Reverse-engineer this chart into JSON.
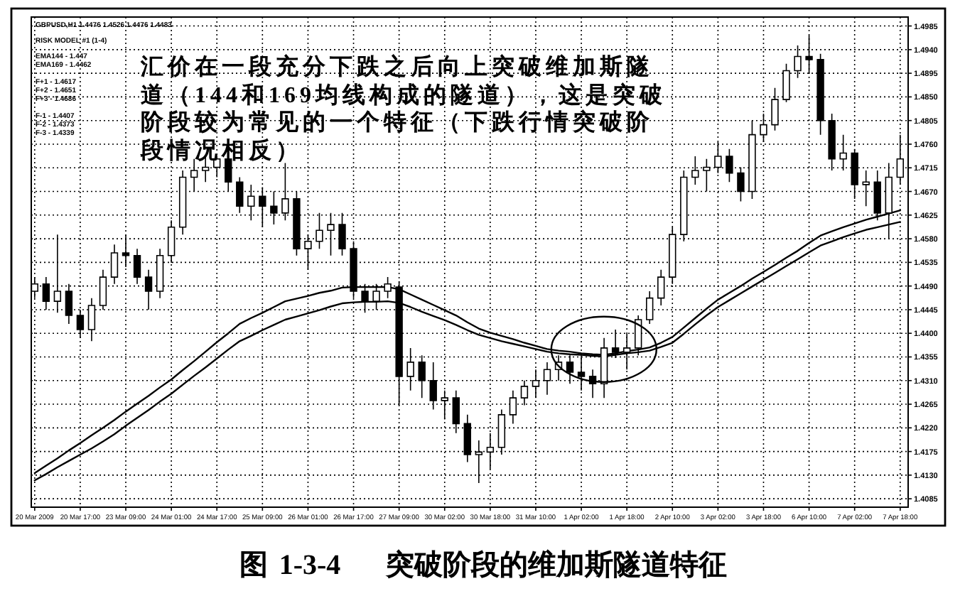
{
  "chart_data": {
    "type": "candlestick",
    "title": "图 1-3-4    突破阶段的维加斯隧道特征",
    "annotations": [
      "汇价在一段充分下跌之后向上突破维加斯隧道（144和169均线构成的隧道），这是突破阶段较为常见的一个特征（下跌行情突破阶段情况相反）",
      "GBPUSD,H1 1.4476 1.4526 1.4476 1.4483",
      "RISK MODEL #1 (1-4)",
      "EMA144 - 1.447",
      "EMA169 - 1.4462",
      "F+1 - 1.4617",
      "F+2 - 1.4651",
      "F+3 - 1.4686",
      "F-1 - 1.4407",
      "F-2 - 1.4373",
      "F-3 - 1.4339"
    ],
    "categories": [
      "20 Mar 2009",
      null,
      null,
      null,
      "20 Mar 17:00",
      null,
      null,
      null,
      "23 Mar 09:00",
      null,
      null,
      null,
      "24 Mar 01:00",
      null,
      null,
      null,
      "24 Mar 17:00",
      null,
      null,
      null,
      "25 Mar 09:00",
      null,
      null,
      null,
      "26 Mar 01:00",
      null,
      null,
      null,
      "26 Mar 17:00",
      null,
      null,
      null,
      "27 Mar 09:00",
      null,
      null,
      null,
      "30 Mar 02:00",
      null,
      null,
      null,
      "30 Mar 18:00",
      null,
      null,
      null,
      "31 Mar 10:00",
      null,
      null,
      null,
      "1 Apr 02:00",
      null,
      null,
      null,
      "1 Apr 18:00",
      null,
      null,
      null,
      "2 Apr 10:00",
      null,
      null,
      null,
      "3 Apr 02:00",
      null,
      null,
      null,
      "3 Apr 18:00",
      null,
      null,
      null,
      "6 Apr 10:00",
      null,
      null,
      null,
      "7 Apr 02:00",
      null,
      null,
      null,
      "7 Apr 18:00"
    ],
    "ohlc": [
      [
        1.448,
        1.4507,
        1.4467,
        1.4494
      ],
      [
        1.4494,
        1.4507,
        1.4445,
        1.4461
      ],
      [
        1.4461,
        1.4588,
        1.4439,
        1.448
      ],
      [
        1.448,
        1.4494,
        1.4418,
        1.4434
      ],
      [
        1.4434,
        1.4445,
        1.4391,
        1.4407
      ],
      [
        1.4407,
        1.4467,
        1.4385,
        1.4453
      ],
      [
        1.4453,
        1.4521,
        1.4445,
        1.4507
      ],
      [
        1.4507,
        1.4569,
        1.4494,
        1.4553
      ],
      [
        1.4553,
        1.4588,
        1.4526,
        1.4548
      ],
      [
        1.4548,
        1.4561,
        1.4494,
        1.4507
      ],
      [
        1.4507,
        1.4521,
        1.4445,
        1.448
      ],
      [
        1.448,
        1.4561,
        1.4467,
        1.4548
      ],
      [
        1.4548,
        1.4615,
        1.4534,
        1.4602
      ],
      [
        1.4602,
        1.471,
        1.4588,
        1.4697
      ],
      [
        1.4697,
        1.4732,
        1.467,
        1.471
      ],
      [
        1.471,
        1.4737,
        1.4688,
        1.4716
      ],
      [
        1.4716,
        1.4737,
        1.4697,
        1.4732
      ],
      [
        1.4732,
        1.4734,
        1.467,
        1.4688
      ],
      [
        1.4688,
        1.4697,
        1.4629,
        1.4642
      ],
      [
        1.4642,
        1.4683,
        1.4615,
        1.4661
      ],
      [
        1.4661,
        1.4678,
        1.4602,
        1.4642
      ],
      [
        1.4642,
        1.467,
        1.4607,
        1.4629
      ],
      [
        1.4629,
        1.4724,
        1.4615,
        1.4656
      ],
      [
        1.4656,
        1.467,
        1.4548,
        1.4561
      ],
      [
        1.4561,
        1.4588,
        1.4521,
        1.4575
      ],
      [
        1.4575,
        1.4629,
        1.4561,
        1.4596
      ],
      [
        1.4596,
        1.4629,
        1.4548,
        1.4607
      ],
      [
        1.4607,
        1.4629,
        1.4548,
        1.4561
      ],
      [
        1.4561,
        1.4575,
        1.4467,
        1.448
      ],
      [
        1.448,
        1.4494,
        1.4439,
        1.4461
      ],
      [
        1.4461,
        1.4494,
        1.4445,
        1.448
      ],
      [
        1.448,
        1.4507,
        1.4467,
        1.4494
      ],
      [
        1.4488,
        1.4499,
        1.4263,
        1.4318
      ],
      [
        1.4318,
        1.4372,
        1.4291,
        1.4345
      ],
      [
        1.4345,
        1.4358,
        1.4277,
        1.431
      ],
      [
        1.431,
        1.4345,
        1.4255,
        1.4272
      ],
      [
        1.4272,
        1.4291,
        1.4236,
        1.4277
      ],
      [
        1.4277,
        1.4291,
        1.421,
        1.4228
      ],
      [
        1.4228,
        1.4245,
        1.4155,
        1.4169
      ],
      [
        1.4169,
        1.4196,
        1.4115,
        1.4174
      ],
      [
        1.4174,
        1.421,
        1.4142,
        1.4183
      ],
      [
        1.4183,
        1.4255,
        1.4169,
        1.4245
      ],
      [
        1.4245,
        1.4291,
        1.4228,
        1.4277
      ],
      [
        1.4277,
        1.431,
        1.4263,
        1.4299
      ],
      [
        1.4299,
        1.4331,
        1.4277,
        1.431
      ],
      [
        1.431,
        1.4345,
        1.4283,
        1.4331
      ],
      [
        1.4331,
        1.4358,
        1.431,
        1.4345
      ],
      [
        1.4345,
        1.4358,
        1.4304,
        1.4326
      ],
      [
        1.4326,
        1.4358,
        1.4291,
        1.4318
      ],
      [
        1.4318,
        1.4331,
        1.4277,
        1.4304
      ],
      [
        1.4304,
        1.4391,
        1.4277,
        1.4372
      ],
      [
        1.4372,
        1.4407,
        1.4353,
        1.4364
      ],
      [
        1.4364,
        1.4399,
        1.4331,
        1.4372
      ],
      [
        1.4372,
        1.4434,
        1.4358,
        1.4426
      ],
      [
        1.4426,
        1.448,
        1.4418,
        1.4467
      ],
      [
        1.4467,
        1.4521,
        1.4453,
        1.4507
      ],
      [
        1.4507,
        1.4602,
        1.4494,
        1.4588
      ],
      [
        1.4588,
        1.471,
        1.4575,
        1.4697
      ],
      [
        1.4697,
        1.4737,
        1.4683,
        1.471
      ],
      [
        1.471,
        1.4732,
        1.467,
        1.4716
      ],
      [
        1.4716,
        1.4764,
        1.4705,
        1.4737
      ],
      [
        1.4737,
        1.4751,
        1.4688,
        1.4705
      ],
      [
        1.4705,
        1.4716,
        1.4651,
        1.467
      ],
      [
        1.467,
        1.4805,
        1.4656,
        1.4778
      ],
      [
        1.4778,
        1.4818,
        1.4764,
        1.4797
      ],
      [
        1.4797,
        1.4867,
        1.4786,
        1.4845
      ],
      [
        1.4845,
        1.4913,
        1.484,
        1.49
      ],
      [
        1.49,
        1.4948,
        1.4886,
        1.4927
      ],
      [
        1.4927,
        1.4967,
        1.4894,
        1.4921
      ],
      [
        1.4921,
        1.4932,
        1.4778,
        1.4805
      ],
      [
        1.4805,
        1.4818,
        1.471,
        1.4732
      ],
      [
        1.4732,
        1.4778,
        1.471,
        1.4743
      ],
      [
        1.4743,
        1.4751,
        1.4656,
        1.4683
      ],
      [
        1.4683,
        1.471,
        1.4642,
        1.4688
      ],
      [
        1.4688,
        1.471,
        1.4615,
        1.4629
      ],
      [
        1.4629,
        1.4724,
        1.458,
        1.4697
      ],
      [
        1.4697,
        1.4778,
        1.4683,
        1.4732
      ]
    ],
    "series": [
      {
        "type": "line",
        "color": "#000000",
        "values": [
          1.4134,
          1.4148,
          1.4162,
          1.4177,
          1.4191,
          1.4206,
          1.422,
          1.4235,
          1.4251,
          1.4266,
          1.4281,
          1.4297,
          1.4312,
          1.433,
          1.4347,
          1.4365,
          1.4383,
          1.44,
          1.4418,
          1.4429,
          1.4439,
          1.445,
          1.4461,
          1.4466,
          1.4471,
          1.4477,
          1.4481,
          1.4487,
          1.4488,
          1.4488,
          1.4488,
          1.4488,
          1.4484,
          1.4474,
          1.4464,
          1.4454,
          1.4444,
          1.4434,
          1.4421,
          1.4409,
          1.4401,
          1.4395,
          1.4389,
          1.4382,
          1.4376,
          1.437,
          1.4367,
          1.4365,
          1.4362,
          1.436,
          1.4359,
          1.4362,
          1.4366,
          1.4369,
          1.4373,
          1.4382,
          1.4393,
          1.4411,
          1.4429,
          1.4447,
          1.4464,
          1.4477,
          1.449,
          1.4504,
          1.4517,
          1.453,
          1.4544,
          1.4557,
          1.4572,
          1.4586,
          1.4594,
          1.4602,
          1.4609,
          1.4616,
          1.4622,
          1.4628,
          1.4634
        ]
      },
      {
        "type": "line",
        "color": "#000000",
        "values": [
          1.412,
          1.4132,
          1.4145,
          1.4157,
          1.4169,
          1.4181,
          1.4194,
          1.4208,
          1.4224,
          1.4239,
          1.4254,
          1.427,
          1.4285,
          1.4302,
          1.4319,
          1.4335,
          1.4352,
          1.4369,
          1.4385,
          1.4395,
          1.4406,
          1.4416,
          1.4426,
          1.4432,
          1.4438,
          1.4444,
          1.4451,
          1.4457,
          1.4459,
          1.446,
          1.446,
          1.4461,
          1.4458,
          1.445,
          1.4441,
          1.4433,
          1.4425,
          1.4416,
          1.4406,
          1.4397,
          1.4391,
          1.4385,
          1.438,
          1.4375,
          1.437,
          1.4365,
          1.4362,
          1.436,
          1.4359,
          1.4357,
          1.4356,
          1.4359,
          1.4362,
          1.4364,
          1.4367,
          1.4374,
          1.4382,
          1.4399,
          1.4417,
          1.4434,
          1.445,
          1.4463,
          1.4476,
          1.4489,
          1.4502,
          1.4515,
          1.4528,
          1.4541,
          1.4554,
          1.4567,
          1.4575,
          1.4583,
          1.459,
          1.4597,
          1.4602,
          1.4607,
          1.4612
        ]
      }
    ],
    "ylim": [
      1.4069,
      1.5002
    ],
    "yticks": [
      1.4085,
      {
        "value": 1.413,
        "label": "1.4130"
      },
      1.4175,
      {
        "value": 1.422,
        "label": "1.4220"
      },
      1.4265,
      {
        "value": 1.431,
        "label": "1.4310"
      },
      1.4355,
      {
        "value": 1.44,
        "label": "1.4400"
      },
      1.4445,
      {
        "value": 1.449,
        "label": "1.4490"
      },
      1.4535,
      {
        "value": 1.458,
        "label": "1.4580"
      },
      1.4625,
      {
        "value": 1.467,
        "label": "1.4670"
      },
      1.4715,
      {
        "value": 1.476,
        "label": "1.4760"
      },
      1.4805,
      {
        "value": 1.485,
        "label": "1.4850"
      },
      1.4895,
      {
        "value": 1.494,
        "label": "1.4940"
      },
      1.4985
    ],
    "grid": true
  }
}
